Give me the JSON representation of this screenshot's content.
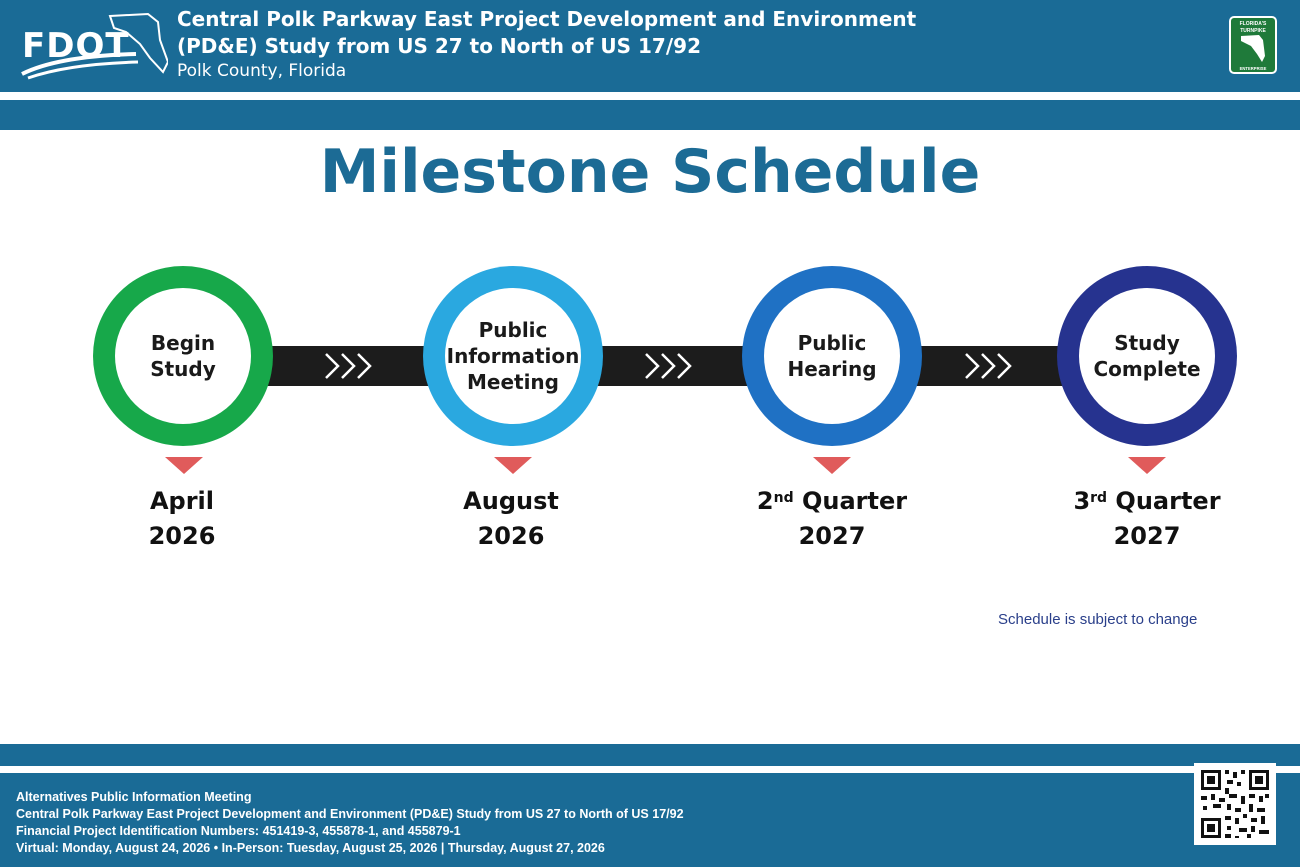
{
  "header": {
    "logo_text": "FDOT",
    "title_lines": [
      "Central Polk Parkway East Project Development and Environment",
      "(PD&E) Study from US 27 to North of US 17/92"
    ],
    "subtitle": "Polk County, Florida",
    "turnpike_logo": {
      "line1": "FLORIDA'S",
      "line2": "TURNPIKE",
      "line3": "ENTERPRISE"
    }
  },
  "page_title": "Milestone Schedule",
  "milestones": [
    {
      "label": "Begin\nStudy",
      "ring_color": "#17a84a",
      "date_line1": "April",
      "date_sup": "",
      "date_rest": "",
      "date_line2": "2026"
    },
    {
      "label": "Public\nInformation\nMeeting",
      "ring_color": "#2aa8e0",
      "date_line1": "August",
      "date_sup": "",
      "date_rest": "",
      "date_line2": "2026"
    },
    {
      "label": "Public\nHearing",
      "ring_color": "#1f71c4",
      "date_line1": "2",
      "date_sup": "nd",
      "date_rest": " Quarter",
      "date_line2": "2027"
    },
    {
      "label": "Study\nComplete",
      "ring_color": "#26338f",
      "date_line1": "3",
      "date_sup": "rd",
      "date_rest": " Quarter",
      "date_line2": "2027"
    }
  ],
  "colors": {
    "brand_blue": "#1a6b96",
    "title_blue": "#1c6b95",
    "arrow_red": "#e05b5b",
    "bar": "#1c1c1c"
  },
  "note": "Schedule is subject to change",
  "footer": {
    "lines": [
      "Alternatives Public Information Meeting",
      "Central Polk Parkway East Project Development and Environment (PD&E) Study from US 27 to North of US 17/92",
      "Financial Project Identification Numbers: 451419-3, 455878-1, and 455879-1",
      "Virtual: Monday, August 24, 2026 • In-Person: Tuesday, August 25, 2026 | Thursday, August 27, 2026"
    ]
  }
}
